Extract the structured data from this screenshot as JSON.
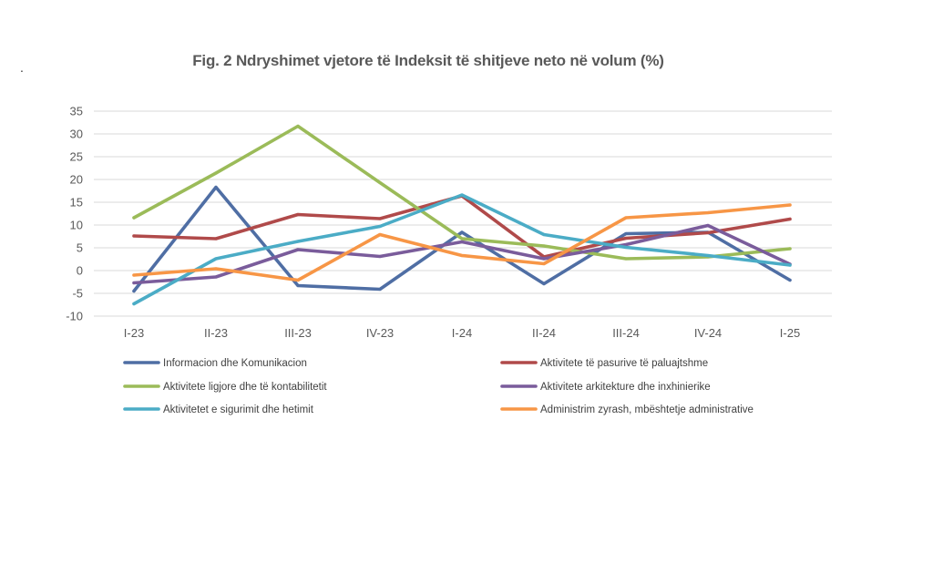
{
  "page": {
    "stray_mark": "."
  },
  "chart_data": {
    "type": "line",
    "title": "Fig. 2 Ndryshimet vjetore të Indeksit të shitjeve neto në volum (%)",
    "xlabel": "",
    "ylabel": "",
    "categories": [
      "I-23",
      "II-23",
      "III-23",
      "IV-23",
      "I-24",
      "II-24",
      "III-24",
      "IV-24",
      "I-25"
    ],
    "ylim": [
      -10,
      35
    ],
    "yticks": [
      -10,
      -5,
      0,
      5,
      10,
      15,
      20,
      25,
      30,
      35
    ],
    "grid": true,
    "legend_position": "bottom",
    "series": [
      {
        "name": "Informacion dhe Komunikacion",
        "color": "#4F6EA4",
        "values": [
          -4.5,
          18.3,
          -3.3,
          -4.1,
          8.4,
          -2.9,
          8.1,
          8.4,
          -2.1
        ]
      },
      {
        "name": "Aktivitete të pasurive të paluajtshme",
        "color": "#B04A4A",
        "values": [
          7.6,
          7.0,
          12.3,
          11.4,
          16.4,
          3.0,
          7.1,
          8.3,
          11.3
        ]
      },
      {
        "name": "Aktivitete ligjore dhe të kontabilitetit",
        "color": "#9BBB59",
        "values": [
          11.6,
          21.4,
          31.7,
          19.3,
          7.0,
          5.4,
          2.6,
          3.0,
          4.8
        ]
      },
      {
        "name": "Aktivitete arkitekture dhe inxhinierike",
        "color": "#7A5C9B",
        "values": [
          -2.7,
          -1.4,
          4.6,
          3.1,
          6.3,
          2.6,
          5.7,
          9.9,
          1.4
        ]
      },
      {
        "name": "Aktivitetet e sigurimit dhe hetimit",
        "color": "#4BACC6",
        "values": [
          -7.3,
          2.6,
          6.4,
          9.7,
          16.6,
          7.9,
          5.1,
          3.3,
          1.2
        ]
      },
      {
        "name": "Administrim zyrash, mbështetje administrative",
        "color": "#F79646",
        "values": [
          -1.0,
          0.4,
          -2.1,
          7.9,
          3.3,
          1.5,
          11.6,
          12.7,
          14.4
        ]
      }
    ]
  }
}
